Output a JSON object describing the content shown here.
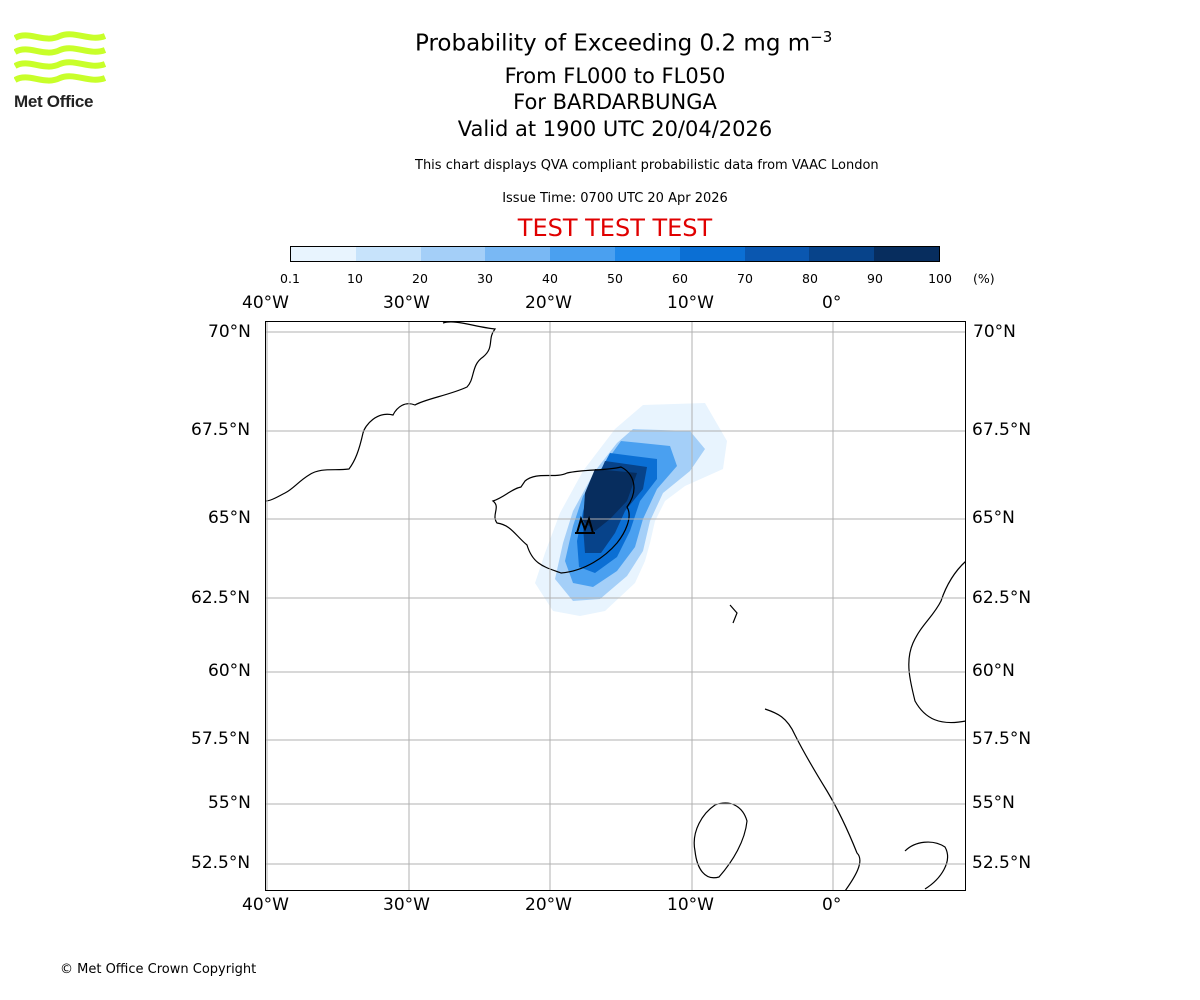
{
  "header": {
    "title_prefix": "Probability of Exceeding 0.2 mg m",
    "title_exponent": "−3",
    "levels": "From FL000 to FL050",
    "volcano": "For BARDARBUNGA",
    "valid": "Valid at 1900 UTC 20/04/2026",
    "description": "This chart displays QVA compliant probabilistic data from VAAC London",
    "issue_time": "Issue Time: 0700 UTC 20 Apr 2026",
    "banner": "TEST TEST TEST"
  },
  "logo": {
    "text": "Met Office",
    "color": "#c8ff2a"
  },
  "colorbar": {
    "ticks": [
      "0.1",
      "10",
      "20",
      "30",
      "40",
      "50",
      "60",
      "70",
      "80",
      "90",
      "100"
    ],
    "unit": "(%)",
    "colors": [
      "#e8f4fe",
      "#c7e3fb",
      "#a4cff8",
      "#79b8f4",
      "#4aa0f0",
      "#2089ea",
      "#0b6fd4",
      "#0a57b0",
      "#07438a",
      "#072d5e"
    ]
  },
  "map": {
    "lon_labels": [
      "40°W",
      "30°W",
      "20°W",
      "10°W",
      "0°"
    ],
    "lat_labels": [
      "70°N",
      "67.5°N",
      "65°N",
      "62.5°N",
      "60°N",
      "57.5°N",
      "55°N",
      "52.5°N"
    ],
    "volcano_marker": "volcano-icon"
  },
  "footer": {
    "copyright": "© Met Office Crown Copyright"
  }
}
